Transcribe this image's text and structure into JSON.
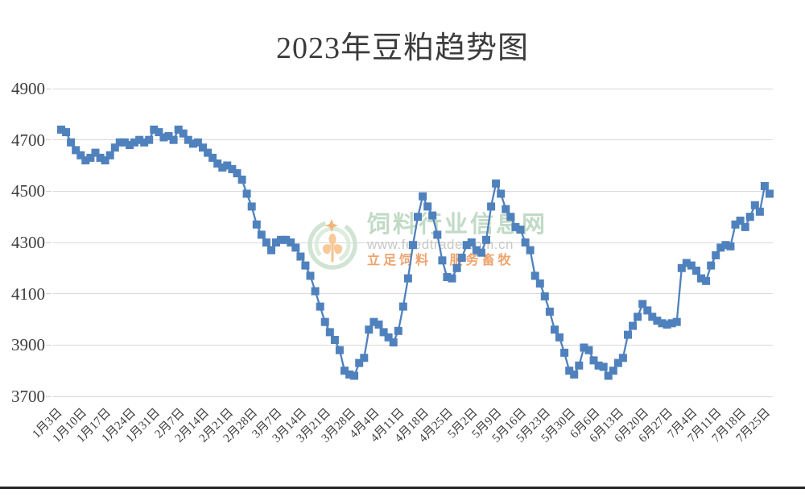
{
  "title": "2023年豆粕趋势图",
  "watermark": {
    "site_name": "饲料行业信息网",
    "url": "www.feedtrade.com.cn",
    "slogan": "立足饲料 服务畜牧"
  },
  "colors": {
    "series": "#4F81BD",
    "gridline": "#D9D9D9",
    "axis_text": "#3D3D3D",
    "title_text": "#3C3C3C",
    "bottom_border": "#262626",
    "watermark_green": "#BED9C2",
    "watermark_arc_green": "#CFE3D2",
    "watermark_gray": "#C6C6C6",
    "watermark_orange": "#EF9F66",
    "watermark_wheat": "#F7C893"
  },
  "chart_data": {
    "type": "line",
    "title": "2023年豆粕趋势图",
    "marker": "square",
    "line_color": "#4F81BD",
    "grid": true,
    "legend": "none",
    "ylim": [
      3700,
      4900
    ],
    "y_ticks": [
      4900,
      4700,
      4500,
      4300,
      4100,
      3900,
      3700
    ],
    "points_per_tick": 5,
    "x_tick_labels": [
      "1月3日",
      "1月10日",
      "1月17日",
      "1月24日",
      "1月31日",
      "2月7日",
      "2月14日",
      "2月21日",
      "2月28日",
      "3月7日",
      "3月14日",
      "3月21日",
      "3月28日",
      "4月4日",
      "4月11日",
      "4月18日",
      "4月25日",
      "5月2日",
      "5月9日",
      "5月16日",
      "5月23日",
      "5月30日",
      "6月6日",
      "6月13日",
      "6月20日",
      "6月27日",
      "7月4日",
      "7月11日",
      "7月18日",
      "7月25日"
    ],
    "values": [
      4740,
      4730,
      4690,
      4660,
      4640,
      4620,
      4630,
      4650,
      4630,
      4620,
      4640,
      4670,
      4690,
      4690,
      4680,
      4690,
      4700,
      4690,
      4700,
      4740,
      4730,
      4710,
      4715,
      4700,
      4740,
      4725,
      4700,
      4685,
      4690,
      4670,
      4650,
      4630,
      4608,
      4592,
      4600,
      4586,
      4570,
      4545,
      4490,
      4440,
      4370,
      4330,
      4300,
      4270,
      4300,
      4310,
      4310,
      4300,
      4280,
      4245,
      4210,
      4170,
      4110,
      4050,
      3990,
      3950,
      3920,
      3880,
      3800,
      3785,
      3780,
      3830,
      3850,
      3960,
      3990,
      3980,
      3950,
      3930,
      3910,
      3955,
      4050,
      4160,
      4290,
      4400,
      4480,
      4440,
      4405,
      4330,
      4230,
      4165,
      4160,
      4200,
      4240,
      4290,
      4300,
      4270,
      4260,
      4310,
      4440,
      4530,
      4490,
      4430,
      4400,
      4360,
      4350,
      4300,
      4270,
      4170,
      4140,
      4090,
      4030,
      3960,
      3930,
      3870,
      3800,
      3785,
      3820,
      3890,
      3880,
      3840,
      3820,
      3815,
      3780,
      3800,
      3830,
      3850,
      3940,
      3975,
      4010,
      4060,
      4035,
      4010,
      3995,
      3985,
      3980,
      3985,
      3990,
      4200,
      4220,
      4210,
      4190,
      4160,
      4150,
      4210,
      4250,
      4280,
      4290,
      4285,
      4370,
      4385,
      4360,
      4400,
      4445,
      4420,
      4520,
      4490
    ]
  }
}
